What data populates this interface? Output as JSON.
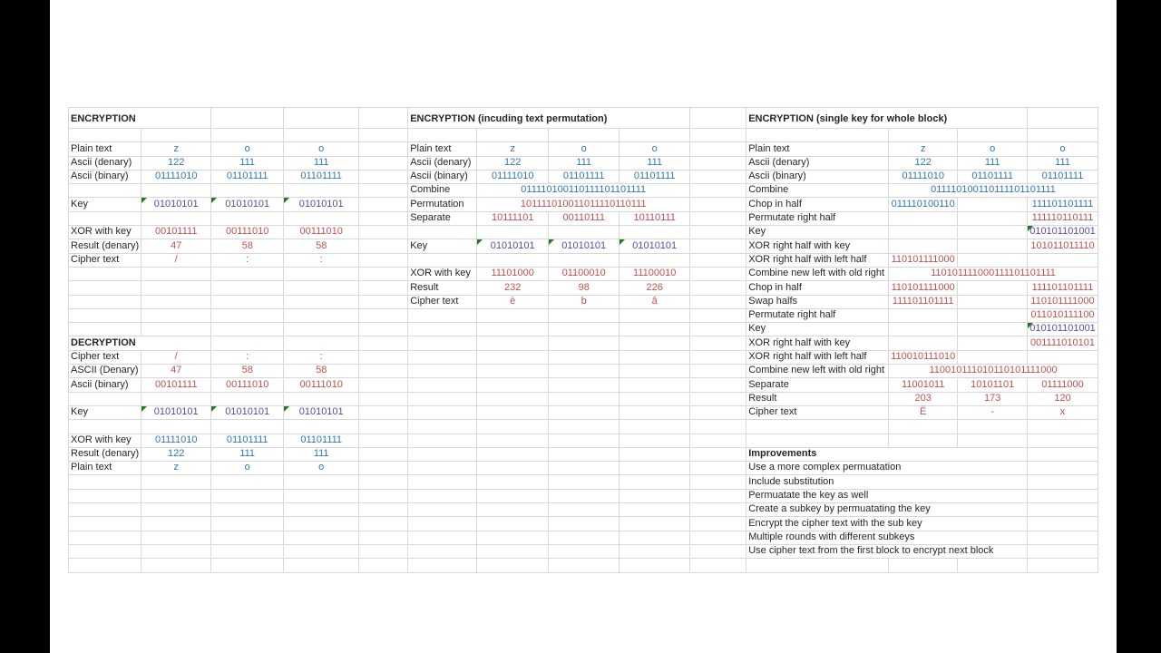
{
  "colors": {
    "black": "#262626",
    "blue": "#2e75b6",
    "red": "#c0504d",
    "purple": "#5b4aa2",
    "grid": "#d8d8d8",
    "error_indicator_green": "#1e7b1e",
    "pillar_black": "#000000",
    "sheet_white": "#ffffff"
  },
  "sections": {
    "encryption_basic": {
      "cells": [
        {
          "r": 1,
          "c": 1,
          "span": 2,
          "text": "ENCRYPTION",
          "bold": 1
        },
        {
          "r": 3,
          "c": 1,
          "text": "Plain text"
        },
        {
          "r": 3,
          "c": 2,
          "text": "z",
          "color": "blue",
          "v": 1
        },
        {
          "r": 3,
          "c": 3,
          "text": "o",
          "color": "blue",
          "v": 1
        },
        {
          "r": 3,
          "c": 4,
          "text": "o",
          "color": "blue",
          "v": 1
        },
        {
          "r": 4,
          "c": 1,
          "text": "Ascii (denary)"
        },
        {
          "r": 4,
          "c": 2,
          "text": "122",
          "color": "blue",
          "v": 1
        },
        {
          "r": 4,
          "c": 3,
          "text": "111",
          "color": "blue",
          "v": 1
        },
        {
          "r": 4,
          "c": 4,
          "text": "111",
          "color": "blue",
          "v": 1
        },
        {
          "r": 5,
          "c": 1,
          "text": "Ascii (binary)"
        },
        {
          "r": 5,
          "c": 2,
          "text": "01111010",
          "color": "blue",
          "v": 1
        },
        {
          "r": 5,
          "c": 3,
          "text": "01101111",
          "color": "blue",
          "v": 1
        },
        {
          "r": 5,
          "c": 4,
          "text": "01101111",
          "color": "blue",
          "v": 1
        },
        {
          "r": 7,
          "c": 1,
          "text": "Key"
        },
        {
          "r": 7,
          "c": 2,
          "text": "01010101",
          "color": "purple",
          "v": 1,
          "note": 1
        },
        {
          "r": 7,
          "c": 3,
          "text": "01010101",
          "color": "purple",
          "v": 1,
          "note": 1
        },
        {
          "r": 7,
          "c": 4,
          "text": "01010101",
          "color": "purple",
          "v": 1,
          "note": 1
        },
        {
          "r": 9,
          "c": 1,
          "text": "XOR with key"
        },
        {
          "r": 9,
          "c": 2,
          "text": "00101111",
          "color": "red",
          "v": 1
        },
        {
          "r": 9,
          "c": 3,
          "text": "00111010",
          "color": "red",
          "v": 1
        },
        {
          "r": 9,
          "c": 4,
          "text": "00111010",
          "color": "red",
          "v": 1
        },
        {
          "r": 10,
          "c": 1,
          "text": "Result (denary)"
        },
        {
          "r": 10,
          "c": 2,
          "text": "47",
          "color": "red",
          "v": 1
        },
        {
          "r": 10,
          "c": 3,
          "text": "58",
          "color": "red",
          "v": 1
        },
        {
          "r": 10,
          "c": 4,
          "text": "58",
          "color": "red",
          "v": 1
        },
        {
          "r": 11,
          "c": 1,
          "text": "Cipher text"
        },
        {
          "r": 11,
          "c": 2,
          "text": "/",
          "color": "red",
          "v": 1
        },
        {
          "r": 11,
          "c": 3,
          "text": ":",
          "color": "red",
          "v": 1
        },
        {
          "r": 11,
          "c": 4,
          "text": ":",
          "color": "red",
          "v": 1
        }
      ]
    },
    "decryption": {
      "cells": [
        {
          "r": 17,
          "c": 1,
          "span": 2,
          "text": "DECRYPTION",
          "bold": 1
        },
        {
          "r": 18,
          "c": 1,
          "text": "Cipher text"
        },
        {
          "r": 18,
          "c": 2,
          "text": "/",
          "color": "red",
          "v": 1
        },
        {
          "r": 18,
          "c": 3,
          "text": ":",
          "color": "red",
          "v": 1
        },
        {
          "r": 18,
          "c": 4,
          "text": ":",
          "color": "red",
          "v": 1
        },
        {
          "r": 19,
          "c": 1,
          "text": "ASCII (Denary)"
        },
        {
          "r": 19,
          "c": 2,
          "text": "47",
          "color": "red",
          "v": 1
        },
        {
          "r": 19,
          "c": 3,
          "text": "58",
          "color": "red",
          "v": 1
        },
        {
          "r": 19,
          "c": 4,
          "text": "58",
          "color": "red",
          "v": 1
        },
        {
          "r": 20,
          "c": 1,
          "text": "Ascii (binary)"
        },
        {
          "r": 20,
          "c": 2,
          "text": "00101111",
          "color": "red",
          "v": 1
        },
        {
          "r": 20,
          "c": 3,
          "text": "00111010",
          "color": "red",
          "v": 1
        },
        {
          "r": 20,
          "c": 4,
          "text": "00111010",
          "color": "red",
          "v": 1
        },
        {
          "r": 22,
          "c": 1,
          "text": "Key"
        },
        {
          "r": 22,
          "c": 2,
          "text": "01010101",
          "color": "purple",
          "v": 1,
          "note": 1
        },
        {
          "r": 22,
          "c": 3,
          "text": "01010101",
          "color": "purple",
          "v": 1,
          "note": 1
        },
        {
          "r": 22,
          "c": 4,
          "text": "01010101",
          "color": "purple",
          "v": 1,
          "note": 1
        },
        {
          "r": 24,
          "c": 1,
          "text": "XOR with key"
        },
        {
          "r": 24,
          "c": 2,
          "text": "01111010",
          "color": "blue",
          "v": 1
        },
        {
          "r": 24,
          "c": 3,
          "text": "01101111",
          "color": "blue",
          "v": 1
        },
        {
          "r": 24,
          "c": 4,
          "text": "01101111",
          "color": "blue",
          "v": 1
        },
        {
          "r": 25,
          "c": 1,
          "text": "Result (denary)"
        },
        {
          "r": 25,
          "c": 2,
          "text": "122",
          "color": "blue",
          "v": 1
        },
        {
          "r": 25,
          "c": 3,
          "text": "111",
          "color": "blue",
          "v": 1
        },
        {
          "r": 25,
          "c": 4,
          "text": "111",
          "color": "blue",
          "v": 1
        },
        {
          "r": 26,
          "c": 1,
          "text": "Plain text"
        },
        {
          "r": 26,
          "c": 2,
          "text": "z",
          "color": "blue",
          "v": 1
        },
        {
          "r": 26,
          "c": 3,
          "text": "o",
          "color": "blue",
          "v": 1
        },
        {
          "r": 26,
          "c": 4,
          "text": "o",
          "color": "blue",
          "v": 1
        }
      ]
    },
    "encryption_permutation": {
      "cells": [
        {
          "r": 1,
          "c": 6,
          "span": 4,
          "text": "ENCRYPTION (incuding text permutation)",
          "bold": 1
        },
        {
          "r": 3,
          "c": 6,
          "text": "Plain text"
        },
        {
          "r": 3,
          "c": 7,
          "text": "z",
          "color": "blue",
          "v": 1
        },
        {
          "r": 3,
          "c": 8,
          "text": "o",
          "color": "blue",
          "v": 1
        },
        {
          "r": 3,
          "c": 9,
          "text": "o",
          "color": "blue",
          "v": 1
        },
        {
          "r": 4,
          "c": 6,
          "text": "Ascii (denary)"
        },
        {
          "r": 4,
          "c": 7,
          "text": "122",
          "color": "blue",
          "v": 1
        },
        {
          "r": 4,
          "c": 8,
          "text": "111",
          "color": "blue",
          "v": 1
        },
        {
          "r": 4,
          "c": 9,
          "text": "111",
          "color": "blue",
          "v": 1
        },
        {
          "r": 5,
          "c": 6,
          "text": "Ascii (binary)"
        },
        {
          "r": 5,
          "c": 7,
          "text": "01111010",
          "color": "blue",
          "v": 1
        },
        {
          "r": 5,
          "c": 8,
          "text": "01101111",
          "color": "blue",
          "v": 1
        },
        {
          "r": 5,
          "c": 9,
          "text": "01101111",
          "color": "blue",
          "v": 1
        },
        {
          "r": 6,
          "c": 6,
          "text": "Combine"
        },
        {
          "r": 6,
          "c": 7,
          "span": 3,
          "text": "011110100110111101101111",
          "color": "blue",
          "v": 1
        },
        {
          "r": 7,
          "c": 6,
          "text": "Permutation"
        },
        {
          "r": 7,
          "c": 7,
          "span": 3,
          "text": "101111010011011110110111",
          "color": "red",
          "v": 1
        },
        {
          "r": 8,
          "c": 6,
          "text": "Separate"
        },
        {
          "r": 8,
          "c": 7,
          "text": "10111101",
          "color": "red",
          "v": 1
        },
        {
          "r": 8,
          "c": 8,
          "text": "00110111",
          "color": "red",
          "v": 1
        },
        {
          "r": 8,
          "c": 9,
          "text": "10110111",
          "color": "red",
          "v": 1
        },
        {
          "r": 10,
          "c": 6,
          "text": "Key"
        },
        {
          "r": 10,
          "c": 7,
          "text": "01010101",
          "color": "purple",
          "v": 1,
          "note": 1
        },
        {
          "r": 10,
          "c": 8,
          "text": "01010101",
          "color": "purple",
          "v": 1,
          "note": 1
        },
        {
          "r": 10,
          "c": 9,
          "text": "01010101",
          "color": "purple",
          "v": 1,
          "note": 1
        },
        {
          "r": 12,
          "c": 6,
          "text": "XOR with key"
        },
        {
          "r": 12,
          "c": 7,
          "text": "11101000",
          "color": "red",
          "v": 1
        },
        {
          "r": 12,
          "c": 8,
          "text": "01100010",
          "color": "red",
          "v": 1
        },
        {
          "r": 12,
          "c": 9,
          "text": "11100010",
          "color": "red",
          "v": 1
        },
        {
          "r": 13,
          "c": 6,
          "text": "Result"
        },
        {
          "r": 13,
          "c": 7,
          "text": "232",
          "color": "red",
          "v": 1
        },
        {
          "r": 13,
          "c": 8,
          "text": "98",
          "color": "red",
          "v": 1
        },
        {
          "r": 13,
          "c": 9,
          "text": "226",
          "color": "red",
          "v": 1
        },
        {
          "r": 14,
          "c": 6,
          "text": "Cipher text"
        },
        {
          "r": 14,
          "c": 7,
          "text": "è",
          "color": "red",
          "v": 1
        },
        {
          "r": 14,
          "c": 8,
          "text": "b",
          "color": "red",
          "v": 1
        },
        {
          "r": 14,
          "c": 9,
          "text": "â",
          "color": "red",
          "v": 1
        }
      ]
    },
    "encryption_single_key": {
      "cells": [
        {
          "r": 1,
          "c": 11,
          "span": 3,
          "text": "ENCRYPTION (single key for whole block)",
          "bold": 1
        },
        {
          "r": 3,
          "c": 11,
          "text": "Plain text"
        },
        {
          "r": 3,
          "c": 12,
          "text": "z",
          "color": "blue",
          "v": 1
        },
        {
          "r": 3,
          "c": 13,
          "text": "o",
          "color": "blue",
          "v": 1
        },
        {
          "r": 3,
          "c": 14,
          "text": "o",
          "color": "blue",
          "v": 1
        },
        {
          "r": 4,
          "c": 11,
          "text": "Ascii (denary)"
        },
        {
          "r": 4,
          "c": 12,
          "text": "122",
          "color": "blue",
          "v": 1
        },
        {
          "r": 4,
          "c": 13,
          "text": "111",
          "color": "blue",
          "v": 1
        },
        {
          "r": 4,
          "c": 14,
          "text": "111",
          "color": "blue",
          "v": 1
        },
        {
          "r": 5,
          "c": 11,
          "text": "Ascii (binary)"
        },
        {
          "r": 5,
          "c": 12,
          "text": "01111010",
          "color": "blue",
          "v": 1
        },
        {
          "r": 5,
          "c": 13,
          "text": "01101111",
          "color": "blue",
          "v": 1
        },
        {
          "r": 5,
          "c": 14,
          "text": "01101111",
          "color": "blue",
          "v": 1
        },
        {
          "r": 6,
          "c": 11,
          "text": "Combine"
        },
        {
          "r": 6,
          "c": 12,
          "span": 3,
          "text": "011110100110111101101111",
          "color": "blue",
          "v": 1
        },
        {
          "r": 7,
          "c": 11,
          "text": "Chop in half"
        },
        {
          "r": 7,
          "c": 12,
          "text": "011110100110",
          "color": "blue",
          "v": 1
        },
        {
          "r": 7,
          "c": 14,
          "text": "111101101111",
          "color": "blue",
          "v": 1
        },
        {
          "r": 8,
          "c": 11,
          "text": "Permutate right half"
        },
        {
          "r": 8,
          "c": 14,
          "text": "111110110111",
          "color": "red",
          "v": 1
        },
        {
          "r": 9,
          "c": 11,
          "text": "Key"
        },
        {
          "r": 9,
          "c": 14,
          "text": "010101101001",
          "color": "purple",
          "v": 1,
          "note": 1
        },
        {
          "r": 10,
          "c": 11,
          "text": "XOR right half with key"
        },
        {
          "r": 10,
          "c": 14,
          "text": "101011011110",
          "color": "red",
          "v": 1
        },
        {
          "r": 11,
          "c": 11,
          "text": "XOR right half with left half"
        },
        {
          "r": 11,
          "c": 12,
          "text": "110101111000",
          "color": "red",
          "v": 1
        },
        {
          "r": 12,
          "c": 11,
          "text": "Combine new left with old right"
        },
        {
          "r": 12,
          "c": 12,
          "span": 3,
          "text": "110101111000111101101111",
          "color": "red",
          "v": 1
        },
        {
          "r": 13,
          "c": 11,
          "text": "Chop in half"
        },
        {
          "r": 13,
          "c": 12,
          "text": "110101111000",
          "color": "red",
          "v": 1
        },
        {
          "r": 13,
          "c": 14,
          "text": "111101101111",
          "color": "red",
          "v": 1
        },
        {
          "r": 14,
          "c": 11,
          "text": "Swap halfs"
        },
        {
          "r": 14,
          "c": 12,
          "text": "111101101111",
          "color": "red",
          "v": 1
        },
        {
          "r": 14,
          "c": 14,
          "text": "110101111000",
          "color": "red",
          "v": 1
        },
        {
          "r": 15,
          "c": 11,
          "text": "Permutate right half"
        },
        {
          "r": 15,
          "c": 14,
          "text": "011010111100",
          "color": "red",
          "v": 1
        },
        {
          "r": 16,
          "c": 11,
          "text": "Key"
        },
        {
          "r": 16,
          "c": 14,
          "text": "010101101001",
          "color": "purple",
          "v": 1,
          "note": 1
        },
        {
          "r": 17,
          "c": 11,
          "text": "XOR right half with key"
        },
        {
          "r": 17,
          "c": 14,
          "text": "001111010101",
          "color": "red",
          "v": 1
        },
        {
          "r": 18,
          "c": 11,
          "text": "XOR right half with left half"
        },
        {
          "r": 18,
          "c": 12,
          "text": "110010111010",
          "color": "red",
          "v": 1
        },
        {
          "r": 19,
          "c": 11,
          "text": "Combine new left with old right"
        },
        {
          "r": 19,
          "c": 12,
          "span": 3,
          "text": "110010111010110101111000",
          "color": "red",
          "v": 1
        },
        {
          "r": 20,
          "c": 11,
          "text": "Separate"
        },
        {
          "r": 20,
          "c": 12,
          "text": "11001011",
          "color": "red",
          "v": 1
        },
        {
          "r": 20,
          "c": 13,
          "text": "10101101",
          "color": "red",
          "v": 1
        },
        {
          "r": 20,
          "c": 14,
          "text": "01111000",
          "color": "red",
          "v": 1
        },
        {
          "r": 21,
          "c": 11,
          "text": "Result"
        },
        {
          "r": 21,
          "c": 12,
          "text": "203",
          "color": "red",
          "v": 1
        },
        {
          "r": 21,
          "c": 13,
          "text": "173",
          "color": "red",
          "v": 1
        },
        {
          "r": 21,
          "c": 14,
          "text": "120",
          "color": "red",
          "v": 1
        },
        {
          "r": 22,
          "c": 11,
          "text": "Cipher text"
        },
        {
          "r": 22,
          "c": 12,
          "text": "Ë",
          "color": "red",
          "v": 1
        },
        {
          "r": 22,
          "c": 13,
          "text": "-",
          "color": "red",
          "v": 1
        },
        {
          "r": 22,
          "c": 14,
          "text": "x",
          "color": "red",
          "v": 1
        }
      ]
    },
    "improvements": {
      "cells": [
        {
          "r": 25,
          "c": 11,
          "span": 3,
          "text": "Improvements",
          "bold": 1
        },
        {
          "r": 26,
          "c": 11,
          "span": 3,
          "text": "Use a more complex permuatation"
        },
        {
          "r": 27,
          "c": 11,
          "span": 3,
          "text": "Include substitution"
        },
        {
          "r": 28,
          "c": 11,
          "span": 3,
          "text": "Permuatate the key as well"
        },
        {
          "r": 29,
          "c": 11,
          "span": 3,
          "text": "Create a subkey by permuatating the key"
        },
        {
          "r": 30,
          "c": 11,
          "span": 3,
          "text": "Encrypt the cipher text with the sub key"
        },
        {
          "r": 31,
          "c": 11,
          "span": 3,
          "text": "Multiple rounds with different subkeys"
        },
        {
          "r": 32,
          "c": 11,
          "span": 3,
          "text": "Use cipher text from the first block to encrypt next block"
        }
      ]
    }
  }
}
